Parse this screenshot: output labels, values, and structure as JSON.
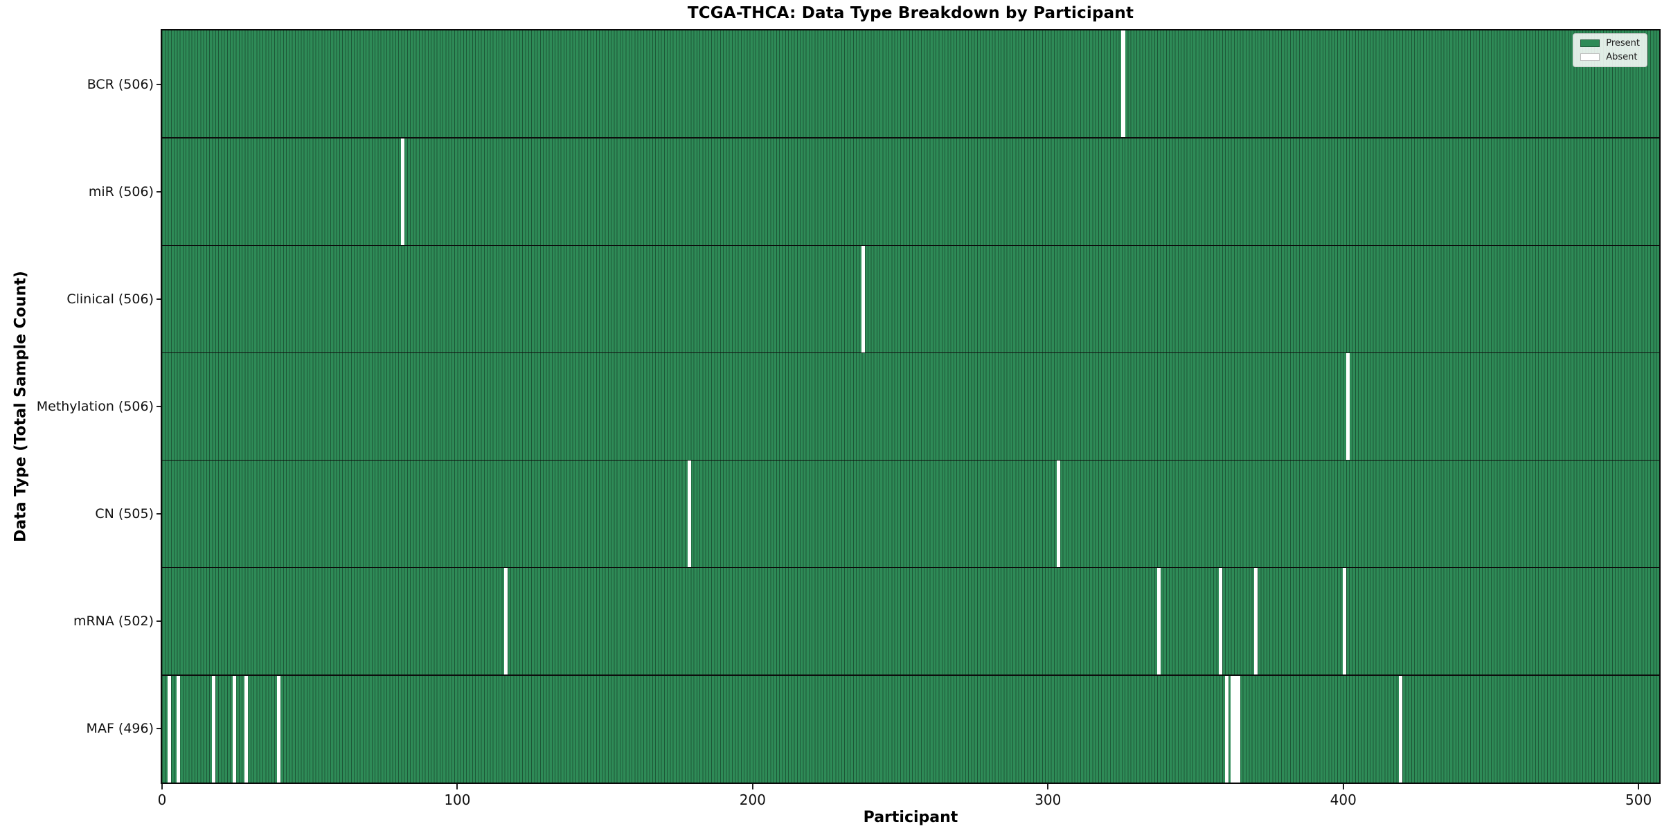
{
  "title": "TCGA-THCA: Data Type Breakdown by Participant",
  "axes": {
    "x_label": "Participant",
    "y_label": "Data Type (Total Sample Count)"
  },
  "legend": {
    "present_label": "Present",
    "absent_label": "Absent"
  },
  "colors": {
    "present": "#2e8b57",
    "present_edge": "#1d5737",
    "absent": "#ffffff",
    "frame": "#0a0a0a",
    "row_divider": "#0d0d0d",
    "tick": "#222222",
    "legend_border": "#cccccc",
    "legend_background": "rgba(255,255,255,0.85)",
    "absent_swatch_edge": "#bbbbbb"
  },
  "chart_data": {
    "type": "heatmap",
    "title": "TCGA-THCA: Data Type Breakdown by Participant",
    "xlabel": "Participant",
    "ylabel": "Data Type (Total Sample Count)",
    "n_participants": 507,
    "x_ticks": [
      0,
      100,
      200,
      300,
      400,
      500
    ],
    "grid": false,
    "legend_entries": [
      "Present",
      "Absent"
    ],
    "legend_position": "upper right",
    "cell_states": {
      "present": 1,
      "absent": 0
    },
    "rows": [
      {
        "name": "BCR",
        "label": "BCR (506)",
        "total_samples": 506,
        "absent_participants": [
          325
        ]
      },
      {
        "name": "miR",
        "label": "miR (506)",
        "total_samples": 506,
        "absent_participants": [
          81
        ]
      },
      {
        "name": "Clinical",
        "label": "Clinical (506)",
        "total_samples": 506,
        "absent_participants": [
          237
        ]
      },
      {
        "name": "Methylation",
        "label": "Methylation (506)",
        "total_samples": 506,
        "absent_participants": [
          401
        ]
      },
      {
        "name": "CN",
        "label": "CN (505)",
        "total_samples": 505,
        "absent_participants": [
          178,
          303
        ]
      },
      {
        "name": "mRNA",
        "label": "mRNA (502)",
        "total_samples": 502,
        "absent_participants": [
          116,
          337,
          358,
          370,
          400
        ]
      },
      {
        "name": "MAF",
        "label": "MAF (496)",
        "total_samples": 496,
        "absent_participants": [
          2,
          5,
          17,
          24,
          28,
          39,
          360,
          362,
          363,
          364,
          419
        ]
      }
    ]
  }
}
